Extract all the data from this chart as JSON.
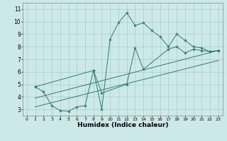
{
  "xlabel": "Humidex (Indice chaleur)",
  "bg_color": "#cde8e8",
  "grid_color": "#aacccc",
  "line_color": "#2e7d6e",
  "xlim": [
    -0.5,
    23.5
  ],
  "ylim": [
    2.5,
    11.5
  ],
  "xticks": [
    0,
    1,
    2,
    3,
    4,
    5,
    6,
    7,
    8,
    9,
    10,
    11,
    12,
    13,
    14,
    15,
    16,
    17,
    18,
    19,
    20,
    21,
    22,
    23
  ],
  "yticks": [
    3,
    4,
    5,
    6,
    7,
    8,
    9,
    10,
    11
  ],
  "series1_x": [
    1,
    2,
    3,
    4,
    5,
    6,
    7,
    8,
    9,
    10,
    11,
    12,
    13,
    14,
    15,
    16,
    17,
    18,
    19,
    20,
    21,
    22,
    23
  ],
  "series1_y": [
    4.8,
    4.4,
    3.3,
    2.9,
    2.85,
    3.2,
    3.3,
    6.1,
    3.0,
    8.6,
    9.9,
    10.7,
    9.7,
    9.9,
    9.3,
    8.8,
    8.0,
    9.0,
    8.5,
    8.0,
    7.9,
    7.6,
    7.7
  ],
  "series2_x": [
    1,
    8,
    9,
    12,
    13,
    14,
    17,
    18,
    19,
    20,
    21,
    22,
    23
  ],
  "series2_y": [
    4.8,
    6.1,
    4.3,
    5.0,
    7.9,
    6.2,
    7.8,
    8.0,
    7.5,
    7.8,
    7.7,
    7.6,
    7.7
  ],
  "trend1_x": [
    1,
    23
  ],
  "trend1_y": [
    3.9,
    7.7
  ],
  "trend2_x": [
    1,
    23
  ],
  "trend2_y": [
    3.2,
    6.9
  ]
}
